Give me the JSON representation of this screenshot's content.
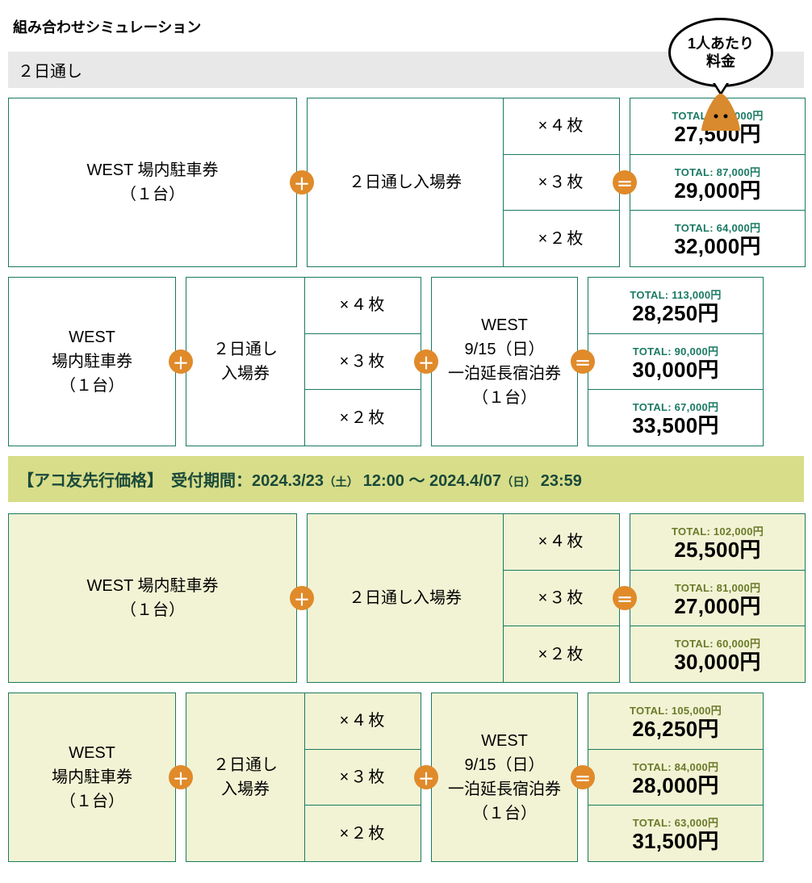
{
  "title": "組み合わせシミュレーション",
  "bubble_text": "1人あたり\n料金",
  "section_band": "２日通し",
  "colors": {
    "cell_border": "#1a7a62",
    "badge_bg": "#e08a2a",
    "presale_bg": "#f2f3d4",
    "banner_bg": "#d8dd8a",
    "total_text": "#1a7a62",
    "total_text_presale": "#6a7a2a",
    "mascot_fill": "#d98a2e"
  },
  "operators": {
    "plus": "＋",
    "equals": "＝"
  },
  "qty_labels": [
    "×４枚",
    "×３枚",
    "×２枚"
  ],
  "items": {
    "west_parking_long": "WEST 場内駐車券\n（１台）",
    "west_parking_stack": "WEST\n場内駐車券\n（１台）",
    "two_day_ticket_long": "２日通し入場券",
    "two_day_ticket_stack": "２日通し\n入場券",
    "extension_stay": "WEST\n9/15（日）\n一泊延長宿泊券\n（１台）"
  },
  "price_banner_parts": {
    "label": "【アコ友先行価格】",
    "period_label": "受付期間：",
    "start_date": "2024.3/23",
    "start_day": "（土）",
    "start_time": "12:00",
    "tilde": "～",
    "end_date": "2024.4/07",
    "end_day": "（日）",
    "end_time": "23:59"
  },
  "rows": [
    {
      "layout": "two",
      "presale": false,
      "prices": [
        {
          "total": "TOTAL: 110,000円",
          "per": "27,500円"
        },
        {
          "total": "TOTAL: 87,000円",
          "per": "29,000円"
        },
        {
          "total": "TOTAL: 64,000円",
          "per": "32,000円"
        }
      ]
    },
    {
      "layout": "three",
      "presale": false,
      "prices": [
        {
          "total": "TOTAL: 113,000円",
          "per": "28,250円"
        },
        {
          "total": "TOTAL: 90,000円",
          "per": "30,000円"
        },
        {
          "total": "TOTAL: 67,000円",
          "per": "33,500円"
        }
      ]
    },
    {
      "layout": "two",
      "presale": true,
      "prices": [
        {
          "total": "TOTAL: 102,000円",
          "per": "25,500円"
        },
        {
          "total": "TOTAL: 81,000円",
          "per": "27,000円"
        },
        {
          "total": "TOTAL: 60,000円",
          "per": "30,000円"
        }
      ]
    },
    {
      "layout": "three",
      "presale": true,
      "prices": [
        {
          "total": "TOTAL: 105,000円",
          "per": "26,250円"
        },
        {
          "total": "TOTAL: 84,000円",
          "per": "28,000円"
        },
        {
          "total": "TOTAL: 63,000円",
          "per": "31,500円"
        }
      ]
    }
  ]
}
